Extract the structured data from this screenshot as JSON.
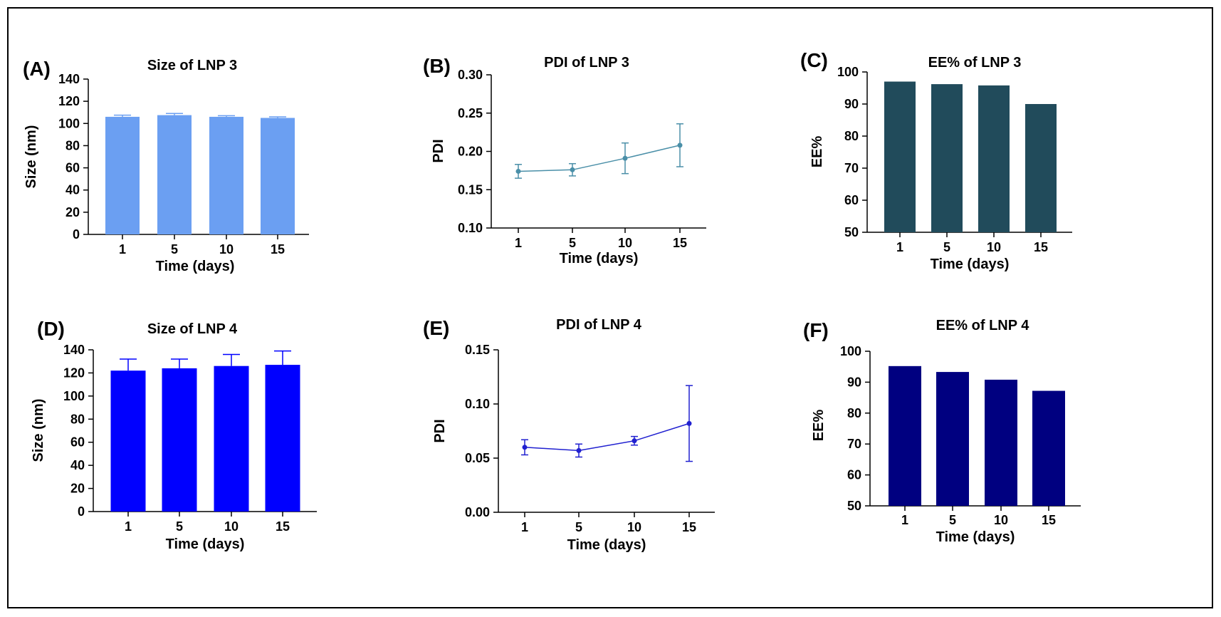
{
  "chart_data": [
    {
      "panel": "(A)",
      "type": "bar",
      "title": "Size of LNP 3",
      "xlabel": "Time (days)",
      "ylabel": "Size (nm)",
      "categories": [
        "1",
        "5",
        "10",
        "15"
      ],
      "values": [
        106,
        107.5,
        106,
        105
      ],
      "errors": [
        1.5,
        1.5,
        1,
        1
      ],
      "ylim": [
        0,
        140
      ],
      "yticks": [
        "0",
        "20",
        "40",
        "60",
        "80",
        "100",
        "120",
        "140"
      ],
      "color": "#6b9ff2",
      "error_color": "#6b9ff2"
    },
    {
      "panel": "(B)",
      "type": "line",
      "title": "PDI of LNP 3",
      "xlabel": "Time (days)",
      "ylabel": "PDI",
      "categories": [
        "1",
        "5",
        "10",
        "15"
      ],
      "values": [
        0.174,
        0.176,
        0.191,
        0.208
      ],
      "errors": [
        0.009,
        0.008,
        0.02,
        0.028
      ],
      "ylim": [
        0.1,
        0.3
      ],
      "yticks": [
        "0.10",
        "0.15",
        "0.20",
        "0.25",
        "0.30"
      ],
      "color": "#4a8fa8",
      "error_color": "#4a8fa8"
    },
    {
      "panel": "(C)",
      "type": "bar",
      "title": "EE% of LNP 3",
      "xlabel": "Time (days)",
      "ylabel": "EE%",
      "categories": [
        "1",
        "5",
        "10",
        "15"
      ],
      "values": [
        97,
        96.2,
        95.8,
        90
      ],
      "errors": [],
      "ylim": [
        50,
        100
      ],
      "yticks": [
        "50",
        "60",
        "70",
        "80",
        "90",
        "100"
      ],
      "color": "#214b5b",
      "error_color": "#214b5b"
    },
    {
      "panel": "(D)",
      "type": "bar",
      "title": "Size of LNP 4",
      "xlabel": "Time (days)",
      "ylabel": "Size (nm)",
      "categories": [
        "1",
        "5",
        "10",
        "15"
      ],
      "values": [
        122,
        124,
        126,
        127
      ],
      "errors": [
        10,
        8,
        10,
        12
      ],
      "ylim": [
        0,
        140
      ],
      "yticks": [
        "0",
        "20",
        "40",
        "60",
        "80",
        "100",
        "120",
        "140"
      ],
      "color": "#0000ff",
      "error_color": "#0000ff"
    },
    {
      "panel": "(E)",
      "type": "line",
      "title": "PDI of LNP 4",
      "xlabel": "Time (days)",
      "ylabel": "PDI",
      "categories": [
        "1",
        "5",
        "10",
        "15"
      ],
      "values": [
        0.06,
        0.057,
        0.066,
        0.082
      ],
      "errors": [
        0.007,
        0.006,
        0.004,
        0.035
      ],
      "ylim": [
        0.0,
        0.15
      ],
      "yticks": [
        "0.00",
        "0.05",
        "0.10",
        "0.15"
      ],
      "color": "#2020d0",
      "error_color": "#2020d0"
    },
    {
      "panel": "(F)",
      "type": "bar",
      "title": "EE% of LNP 4",
      "xlabel": "Time (days)",
      "ylabel": "EE%",
      "categories": [
        "1",
        "5",
        "10",
        "15"
      ],
      "values": [
        95.2,
        93.3,
        90.8,
        87.2
      ],
      "errors": [],
      "ylim": [
        50,
        100
      ],
      "yticks": [
        "50",
        "60",
        "70",
        "80",
        "90",
        "100"
      ],
      "color": "#000080",
      "error_color": "#000080"
    }
  ]
}
